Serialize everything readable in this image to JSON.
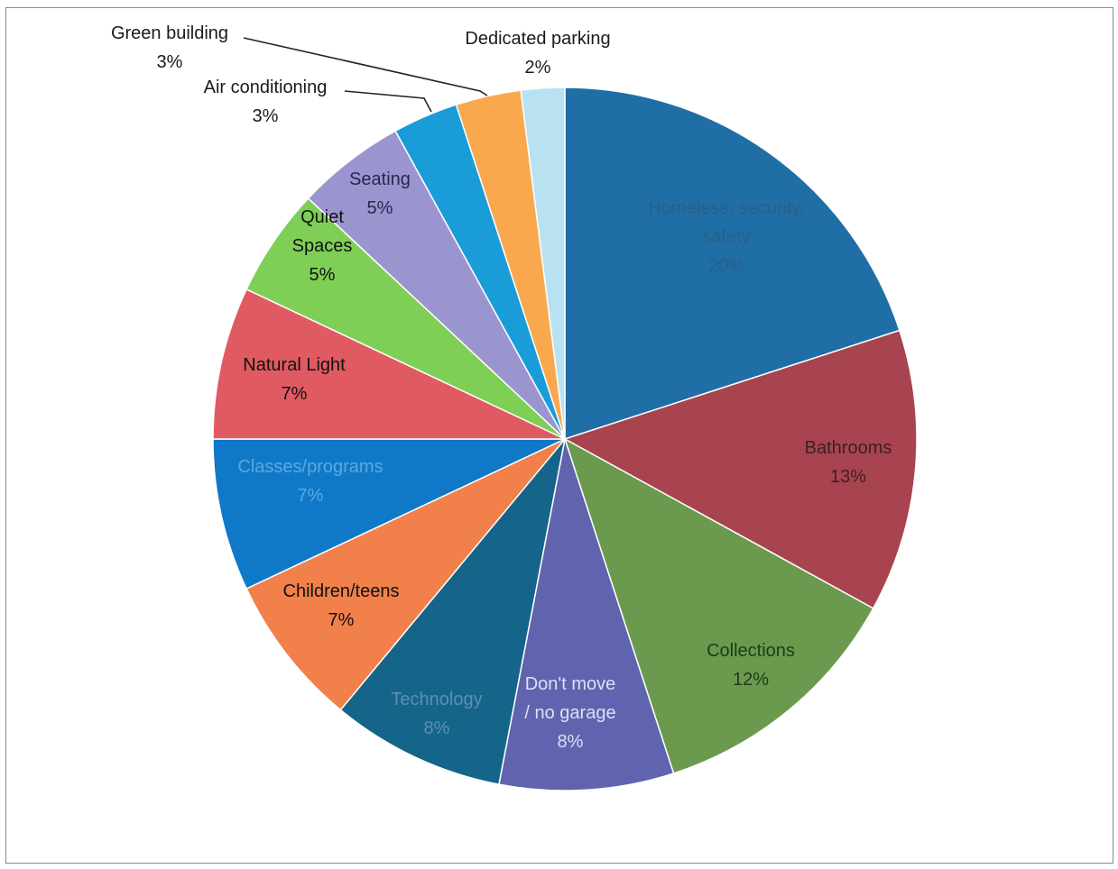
{
  "chart_data": {
    "type": "pie",
    "title": "",
    "slices": [
      {
        "label": [
          "Homeless, security,",
          "safety"
        ],
        "pct_label": "20%",
        "value": 20,
        "color": "#1f6ea5",
        "text_color": "#2a5f8a"
      },
      {
        "label": [
          "Bathrooms"
        ],
        "pct_label": "13%",
        "value": 13,
        "color": "#a8444f",
        "text_color": "#3d1f24"
      },
      {
        "label": [
          "Collections"
        ],
        "pct_label": "12%",
        "value": 12,
        "color": "#6b9a4e",
        "text_color": "#1f3a1a"
      },
      {
        "label": [
          "Don't move",
          "/ no garage"
        ],
        "pct_label": "8%",
        "value": 8,
        "color": "#6064ae",
        "text_color": "#dde0f5"
      },
      {
        "label": [
          "Technology"
        ],
        "pct_label": "8%",
        "value": 8,
        "color": "#15648a",
        "text_color": "#5c8fb5"
      },
      {
        "label": [
          "Children/teens"
        ],
        "pct_label": "7%",
        "value": 7,
        "color": "#f1804a",
        "text_color": "#111111"
      },
      {
        "label": [
          "Classes/programs"
        ],
        "pct_label": "7%",
        "value": 7,
        "color": "#0f79c8",
        "text_color": "#5da8dd"
      },
      {
        "label": [
          "Natural Light"
        ],
        "pct_label": "7%",
        "value": 7,
        "color": "#e05a62",
        "text_color": "#111111"
      },
      {
        "label": [
          "Quiet",
          "Spaces"
        ],
        "pct_label": "5%",
        "value": 5,
        "color": "#7fcf56",
        "text_color": "#111111"
      },
      {
        "label": [
          "Seating"
        ],
        "pct_label": "5%",
        "value": 5,
        "color": "#9b95cf",
        "text_color": "#2a2550"
      },
      {
        "label": [
          "Air conditioning"
        ],
        "pct_label": "3%",
        "value": 3,
        "color": "#1a9cd8",
        "text_color": "#1a1a1a"
      },
      {
        "label": [
          "Green building"
        ],
        "pct_label": "3%",
        "value": 3,
        "color": "#faa84e",
        "text_color": "#1a1a1a"
      },
      {
        "label": [
          "Dedicated parking"
        ],
        "pct_label": "2%",
        "value": 2,
        "color": "#b8e2f2",
        "text_color": "#1a1a1a"
      }
    ]
  }
}
